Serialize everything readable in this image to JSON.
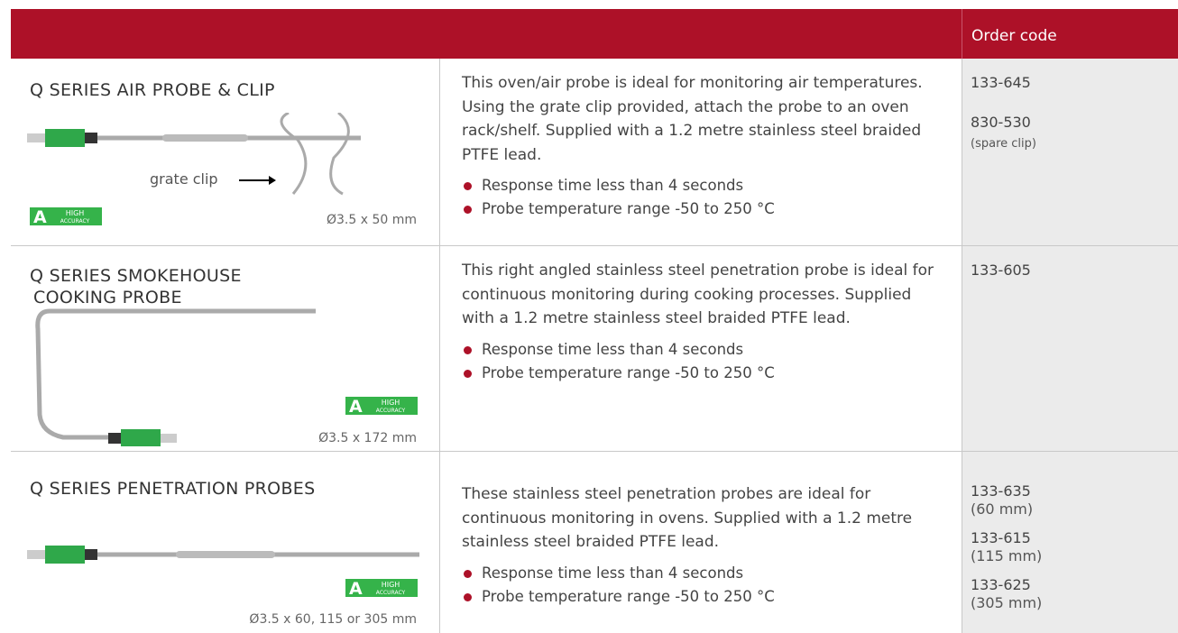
{
  "table": {
    "header": {
      "order_code": "Order code"
    },
    "badge": {
      "mark": "A",
      "line1": "HIGH",
      "line2": "ACCURACY"
    },
    "rows": [
      {
        "name": [
          "Q SERIES AIR PROBE & CLIP"
        ],
        "image_label": "grate clip",
        "dimensions": "Ø3.5 x 50 mm",
        "description": "This oven/air probe is ideal for monitoring air temperatures. Using the grate clip provided, attach the probe to an oven rack/shelf. Supplied with a 1.2 metre stainless steel braided PTFE lead.",
        "bullets": [
          "Response time less than 4 seconds",
          "Probe temperature range -50 to 250 °C"
        ],
        "codes": [
          {
            "code": "133-645"
          },
          {
            "code": "830-530",
            "note": "(spare clip)"
          }
        ]
      },
      {
        "name": [
          "Q SERIES SMOKEHOUSE",
          "COOKING PROBE"
        ],
        "dimensions": "Ø3.5 x 172 mm",
        "description": "This right angled stainless steel penetration probe is ideal for continuous monitoring during cooking processes. Supplied with a 1.2 metre stainless steel braided PTFE lead.",
        "bullets": [
          "Response time less than 4 seconds",
          "Probe temperature range -50 to 250 °C"
        ],
        "codes": [
          {
            "code": "133-605"
          }
        ]
      },
      {
        "name": [
          "Q SERIES PENETRATION PROBES"
        ],
        "dimensions": "Ø3.5 x 60, 115 or 305 mm",
        "description": "These stainless steel penetration probes are ideal for continuous monitoring in ovens. Supplied with a 1.2 metre stainless steel braided PTFE lead.",
        "bullets": [
          "Response time less than 4 seconds",
          "Probe temperature range -50 to 250 °C"
        ],
        "codes": [
          {
            "code": "133-635",
            "note": "(60 mm)"
          },
          {
            "code": "133-615",
            "note": "(115 mm)"
          },
          {
            "code": "133-625",
            "note": "(305 mm)"
          }
        ]
      }
    ]
  }
}
